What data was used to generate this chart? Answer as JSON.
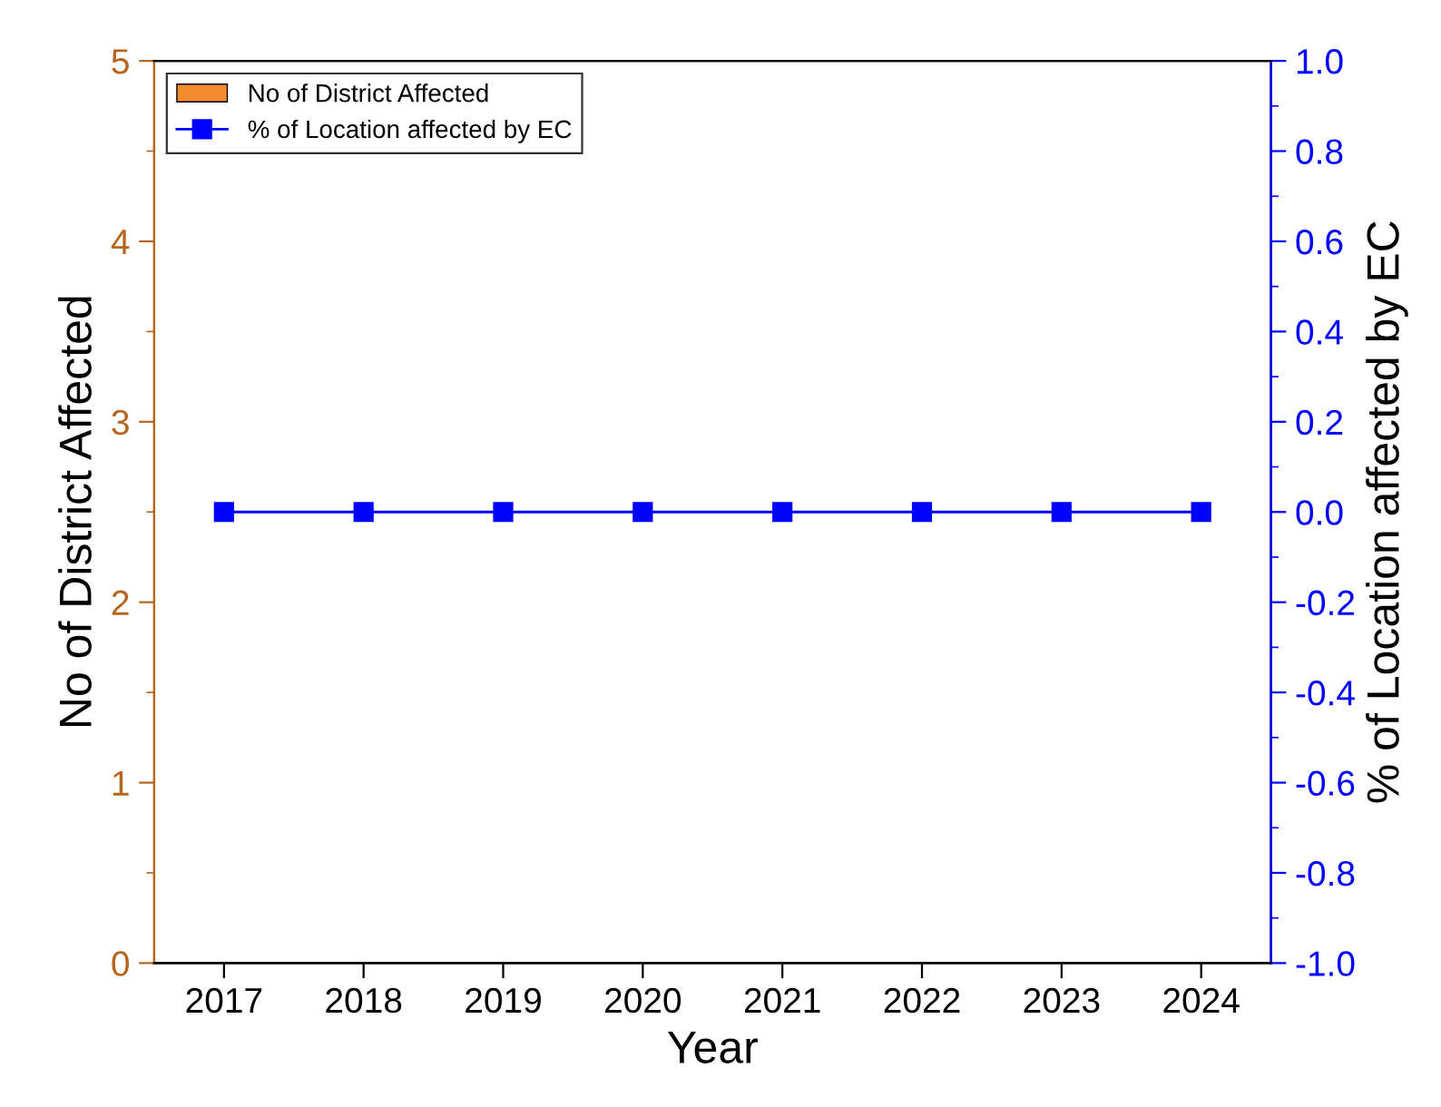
{
  "chart_data": {
    "type": "bar",
    "categories": [
      "2017",
      "2018",
      "2019",
      "2020",
      "2021",
      "2022",
      "2023",
      "2024"
    ],
    "series": [
      {
        "name": "No of District Affected",
        "color": "#f28a2e",
        "values": [
          0,
          0,
          0,
          0,
          0,
          0,
          0,
          0
        ]
      },
      {
        "name": "% of Location affected by EC",
        "type": "line",
        "axis": "y2",
        "color": "#0000ff",
        "values": [
          0,
          0,
          0,
          0,
          0,
          0,
          0,
          0
        ]
      }
    ],
    "xlabel": "Year",
    "ylabel": "No of District Affected",
    "y2label": "% of Location affected by EC",
    "ylim": [
      0,
      5
    ],
    "yticks": [
      0,
      1,
      2,
      3,
      4,
      5
    ],
    "y2lim": [
      -1.0,
      1.0
    ],
    "y2ticks": [
      {
        "value": -1.0,
        "label": "-1.0"
      },
      {
        "value": -0.8,
        "label": "-0.8"
      },
      {
        "value": -0.6,
        "label": "-0.6"
      },
      {
        "value": -0.4,
        "label": "-0.4"
      },
      {
        "value": -0.2,
        "label": "-0.2"
      },
      {
        "value": 0.0,
        "label": "0.0"
      },
      {
        "value": 0.2,
        "label": "0.2"
      },
      {
        "value": 0.4,
        "label": "0.4"
      },
      {
        "value": 0.6,
        "label": "0.6"
      },
      {
        "value": 0.8,
        "label": "0.8"
      },
      {
        "value": 1.0,
        "label": "1.0"
      }
    ],
    "legend": "top left",
    "grid": false,
    "marker": "square",
    "line_style": "solid"
  }
}
